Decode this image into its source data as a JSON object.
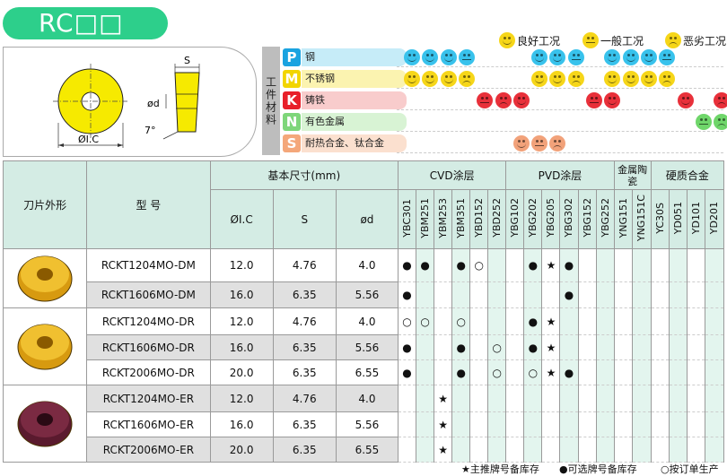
{
  "title": "RC□□",
  "legend": {
    "good": "良好工况",
    "fair": "一般工况",
    "bad": "恶劣工况"
  },
  "diagram": {
    "s_label": "S",
    "d_label": "ød",
    "angle_label": "7°",
    "ic_label": "ØI.C"
  },
  "materials_side_label": "工件材料",
  "materials": [
    {
      "code": "P",
      "name": "钢",
      "color": "#1aa3e0",
      "bg": "#c6ecf8"
    },
    {
      "code": "M",
      "name": "不锈钢",
      "color": "#f2d500",
      "bg": "#fbf3b0"
    },
    {
      "code": "K",
      "name": "铸铁",
      "color": "#e8202a",
      "bg": "#f8cccc"
    },
    {
      "code": "N",
      "name": "有色金属",
      "color": "#7ed67a",
      "bg": "#d8f3d4"
    },
    {
      "code": "S",
      "name": "耐热合金、钛合金",
      "color": "#f4a77a",
      "bg": "#fbe0cf"
    }
  ],
  "table": {
    "col_shape": "刀片外形",
    "col_model": "型  号",
    "col_dims": "基本尺寸(mm)",
    "col_ic": "ØI.C",
    "col_s": "S",
    "col_d": "ød",
    "grade_groups": [
      "CVD涂层",
      "PVD涂层",
      "金属陶瓷",
      "硬质合金"
    ],
    "grades": [
      "YBC301",
      "YBM251",
      "YBM253",
      "YBM351",
      "YBD152",
      "YBD252",
      "YBG102",
      "YBG202",
      "YBG205",
      "YBG302",
      "YBG152",
      "YBG252",
      "YNG151",
      "YNG151C",
      "YC30S",
      "YD051",
      "YD101",
      "YD201"
    ],
    "rows": [
      {
        "model": "RCKT1204MO-DM",
        "ic": "12.0",
        "s": "4.76",
        "d": "4.0",
        "marks": {
          "0": "●",
          "1": "●",
          "3": "●",
          "4": "○",
          "7": "●",
          "8": "★",
          "9": "●"
        }
      },
      {
        "model": "RCKT1606MO-DM",
        "ic": "16.0",
        "s": "6.35",
        "d": "5.56",
        "marks": {
          "0": "●",
          "9": "●"
        }
      },
      {
        "model": "RCKT1204MO-DR",
        "ic": "12.0",
        "s": "4.76",
        "d": "4.0",
        "marks": {
          "0": "○",
          "1": "○",
          "3": "○",
          "7": "●",
          "8": "★"
        }
      },
      {
        "model": "RCKT1606MO-DR",
        "ic": "16.0",
        "s": "6.35",
        "d": "5.56",
        "marks": {
          "0": "●",
          "3": "●",
          "5": "○",
          "7": "●",
          "8": "★"
        }
      },
      {
        "model": "RCKT2006MO-DR",
        "ic": "20.0",
        "s": "6.35",
        "d": "6.55",
        "marks": {
          "0": "●",
          "3": "●",
          "5": "○",
          "7": "○",
          "8": "★",
          "9": "●"
        }
      },
      {
        "model": "RCKT1204MO-ER",
        "ic": "12.0",
        "s": "4.76",
        "d": "4.0",
        "marks": {
          "2": "★"
        }
      },
      {
        "model": "RCKT1606MO-ER",
        "ic": "16.0",
        "s": "6.35",
        "d": "5.56",
        "marks": {
          "2": "★"
        }
      },
      {
        "model": "RCKT2006MO-ER",
        "ic": "20.0",
        "s": "6.35",
        "d": "6.55",
        "marks": {
          "2": "★"
        }
      }
    ]
  },
  "footer": {
    "star": "★主推牌号备库存",
    "dot": "●可选牌号备库存",
    "circle": "○按订单生产"
  }
}
